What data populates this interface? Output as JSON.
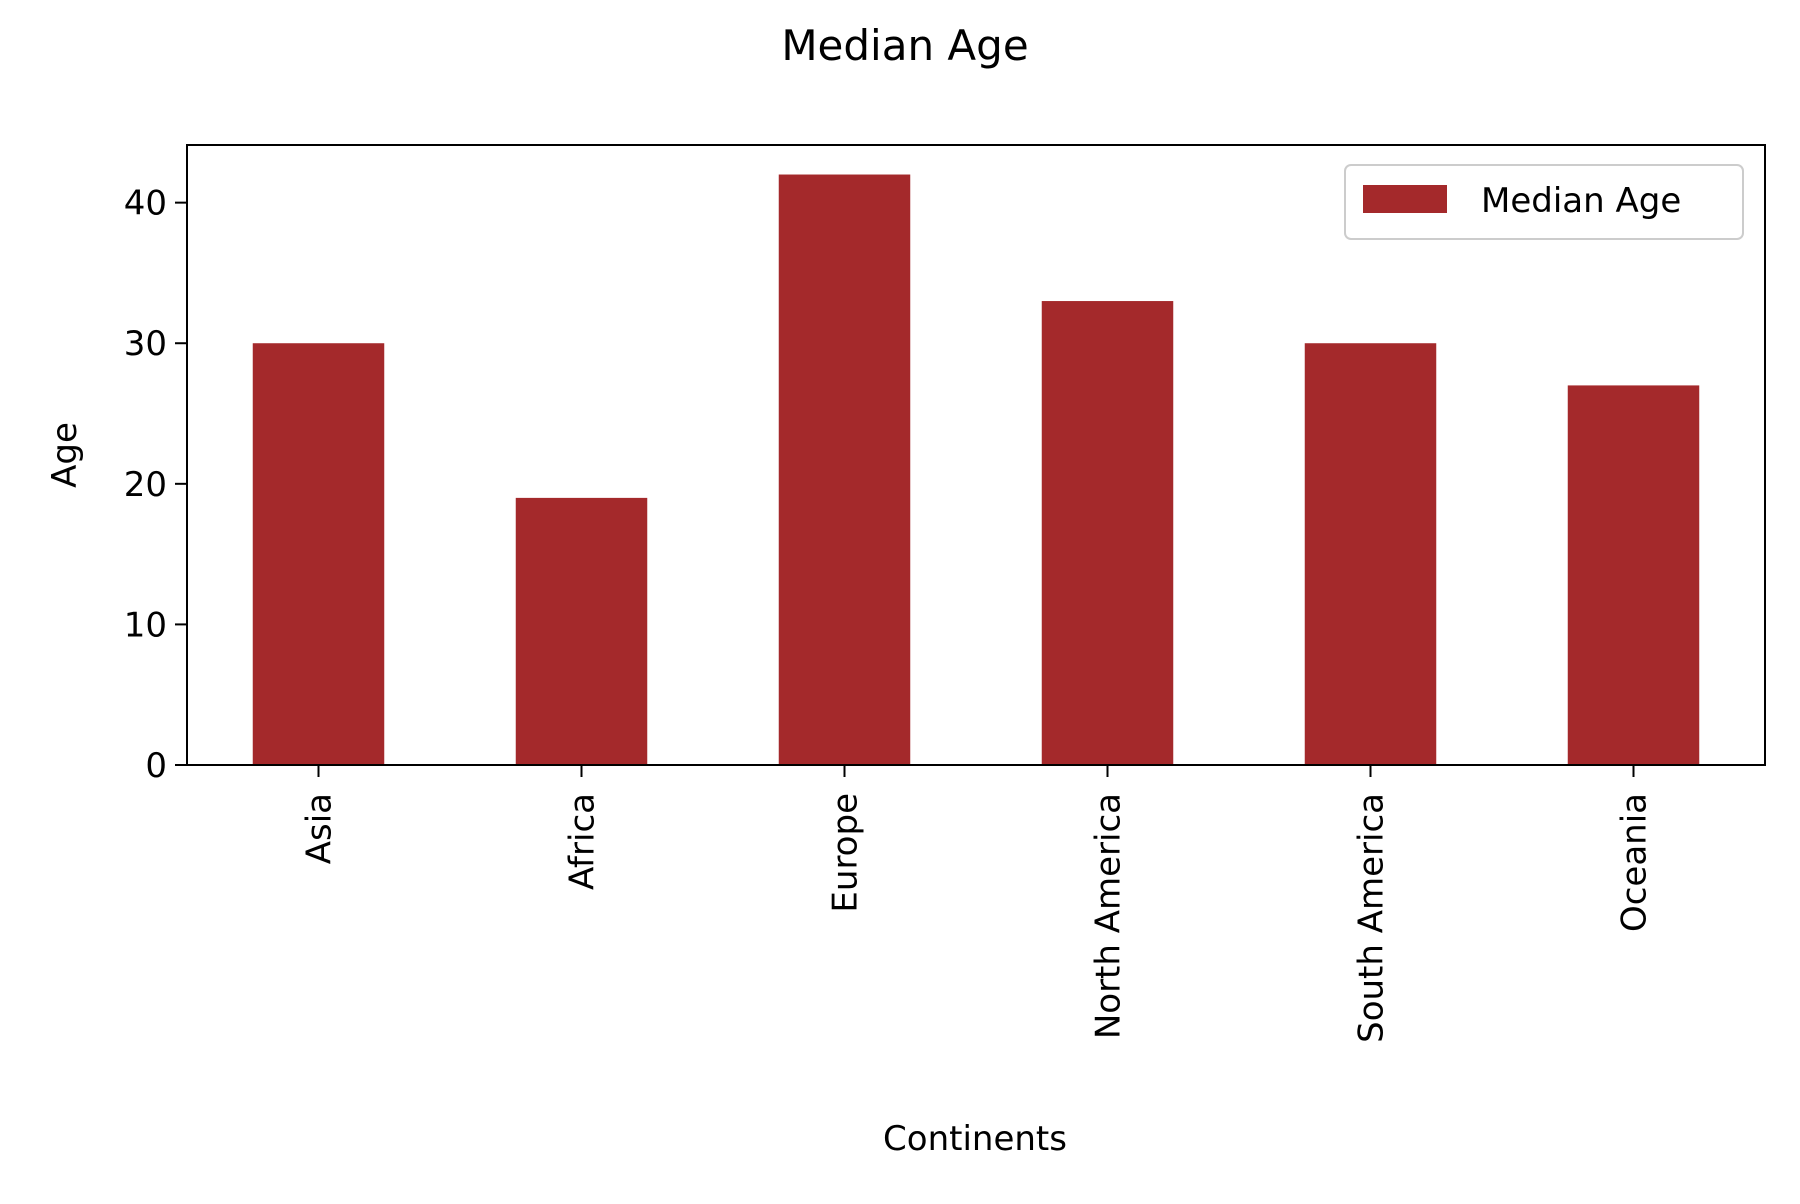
{
  "chart_data": {
    "type": "bar",
    "title": "Median Age",
    "xlabel": "Continents",
    "ylabel": "Age",
    "categories": [
      "Asia",
      "Africa",
      "Europe",
      "North America",
      "South America",
      "Oceania"
    ],
    "series": [
      {
        "name": "Median Age",
        "values": [
          30,
          19,
          42,
          33,
          30,
          27
        ]
      }
    ],
    "ylim": [
      0,
      44.1
    ],
    "yticks": [
      0,
      10,
      20,
      30,
      40
    ],
    "ytick_labels": [
      "0",
      "10",
      "20",
      "30",
      "40"
    ],
    "grid": false,
    "legend_position": "top-right",
    "bar_color": "#a4292b"
  }
}
